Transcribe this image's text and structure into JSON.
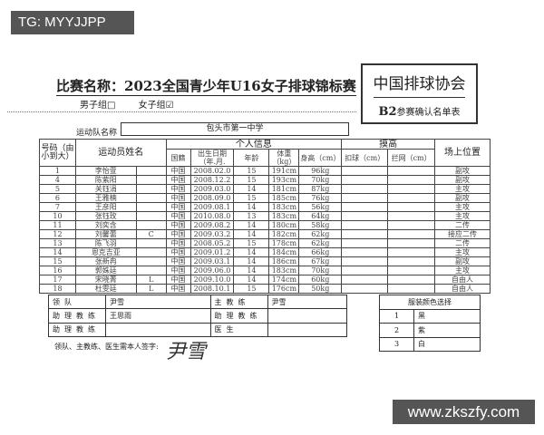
{
  "overlay": {
    "tag": "TG: MYYJJPP",
    "watermark": "www.zkszfy.com"
  },
  "header": {
    "title": "比赛名称：2023全国青少年U16女子排球锦标赛",
    "association": "中国排球协会",
    "form_code": "B2",
    "form_name": "参赛确认名单表",
    "male_group": "男子组□",
    "female_group": "女子组☑",
    "team_label": "运动队名称",
    "team_name": "包头市第一中学"
  },
  "roster": {
    "headers": {
      "number": "号码（由小到大）",
      "name": "运动员姓名",
      "personal": "个人信息",
      "nationality": "国籍",
      "birth": "出生日期（年.月.",
      "age": "年龄",
      "weight": "体重（kg）",
      "height": "身高（cm）",
      "reach": "摸高",
      "spike": "扣球（cm）",
      "block": "拦网（cm）",
      "position": "场上位置"
    },
    "rows": [
      {
        "no": "1",
        "name": "李怡萱",
        "role": "",
        "nat": "中国",
        "birth": "2008.02.0",
        "age": "15",
        "w": "191cm",
        "h": "96kg",
        "spike": "",
        "block": "",
        "pos": "副攻"
      },
      {
        "no": "4",
        "name": "陈紫阳",
        "role": "",
        "nat": "中国",
        "birth": "2008.12.2",
        "age": "15",
        "w": "193cm",
        "h": "70kg",
        "spike": "",
        "block": "",
        "pos": "副攻"
      },
      {
        "no": "5",
        "name": "关钰涓",
        "role": "",
        "nat": "中国",
        "birth": "2009.03.0",
        "age": "14",
        "w": "181cm",
        "h": "87kg",
        "spike": "",
        "block": "",
        "pos": "主攻"
      },
      {
        "no": "6",
        "name": "王雅楠",
        "role": "",
        "nat": "中国",
        "birth": "2008.09.0",
        "age": "15",
        "w": "185cm",
        "h": "76kg",
        "spike": "",
        "block": "",
        "pos": "副攻"
      },
      {
        "no": "7",
        "name": "王彦阳",
        "role": "",
        "nat": "中国",
        "birth": "2009.08.1",
        "age": "14",
        "w": "183cm",
        "h": "56kg",
        "spike": "",
        "block": "",
        "pos": "主攻"
      },
      {
        "no": "10",
        "name": "张钰玫",
        "role": "",
        "nat": "中国",
        "birth": "2010.08.0",
        "age": "13",
        "w": "183cm",
        "h": "64kg",
        "spike": "",
        "block": "",
        "pos": "主攻"
      },
      {
        "no": "11",
        "name": "刘奕含",
        "role": "",
        "nat": "中国",
        "birth": "2009.08.2",
        "age": "14",
        "w": "180cm",
        "h": "58kg",
        "spike": "",
        "block": "",
        "pos": "二传"
      },
      {
        "no": "12",
        "name": "刘馨蕾",
        "role": "C",
        "nat": "中国",
        "birth": "2009.03.2",
        "age": "14",
        "w": "182cm",
        "h": "62kg",
        "spike": "",
        "block": "",
        "pos": "接应二传"
      },
      {
        "no": "13",
        "name": "陈飞羽",
        "role": "",
        "nat": "中国",
        "birth": "2008.05.2",
        "age": "15",
        "w": "178cm",
        "h": "62kg",
        "spike": "",
        "block": "",
        "pos": "二传"
      },
      {
        "no": "14",
        "name": "恩克吉亚",
        "role": "",
        "nat": "中国",
        "birth": "2009.01.2",
        "age": "14",
        "w": "184cm",
        "h": "66kg",
        "spike": "",
        "block": "",
        "pos": "主攻"
      },
      {
        "no": "15",
        "name": "张新冉",
        "role": "",
        "nat": "中国",
        "birth": "2009.03.1",
        "age": "14",
        "w": "186cm",
        "h": "67kg",
        "spike": "",
        "block": "",
        "pos": "副攻"
      },
      {
        "no": "16",
        "name": "郭姝廷",
        "role": "",
        "nat": "中国",
        "birth": "2009.06.0",
        "age": "14",
        "w": "183cm",
        "h": "70kg",
        "spike": "",
        "block": "",
        "pos": "主攻"
      },
      {
        "no": "17",
        "name": "宋晓菁",
        "role": "L",
        "nat": "中国",
        "birth": "2009.10.0",
        "age": "14",
        "w": "174cm",
        "h": "60kg",
        "spike": "",
        "block": "",
        "pos": "自由人"
      },
      {
        "no": "18",
        "name": "杜雯廷",
        "role": "L",
        "nat": "中国",
        "birth": "2008.10.1",
        "age": "15",
        "w": "176cm",
        "h": "50kg",
        "spike": "",
        "block": "",
        "pos": "自由人"
      }
    ]
  },
  "officials": {
    "leader_label": "领队",
    "leader": "尹雪",
    "head_coach_label": "主教练",
    "head_coach": "尹雪",
    "asst1_label": "助理教练",
    "asst1": "王思雨",
    "asst2_label": "助理教练",
    "asst2": "",
    "asst3_label": "助理教练",
    "asst3": "",
    "doctor_label": "医生",
    "doctor": ""
  },
  "uniform": {
    "title": "服装颜色选择",
    "options": [
      {
        "no": "1",
        "color": "黑"
      },
      {
        "no": "2",
        "color": "紫"
      },
      {
        "no": "3",
        "color": "白"
      }
    ]
  },
  "signature": {
    "label": "领队、主教练、医生需本人签字:",
    "sign": "尹雪"
  }
}
